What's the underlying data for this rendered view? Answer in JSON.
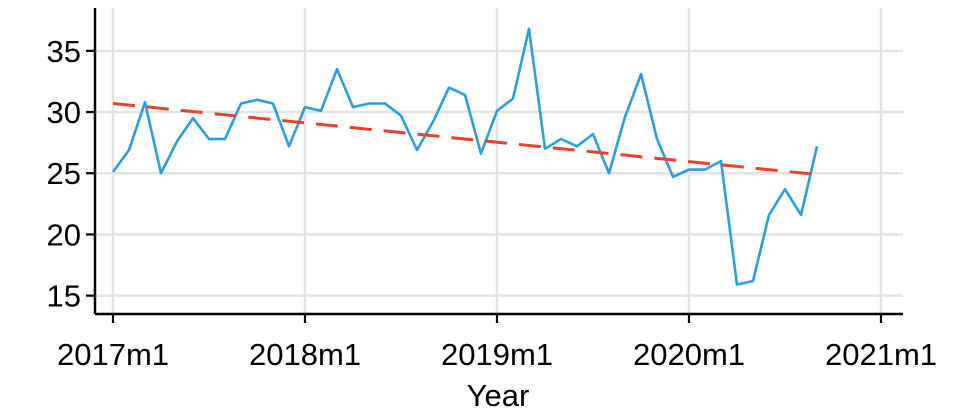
{
  "chart_data": {
    "type": "line",
    "title": "",
    "xlabel": "Year",
    "ylabel": "",
    "x_ticks": [
      "2017m1",
      "2018m1",
      "2019m1",
      "2020m1",
      "2021m1"
    ],
    "y_ticks": [
      15,
      20,
      25,
      30,
      35
    ],
    "xlim": [
      0,
      48
    ],
    "ylim": [
      13.5,
      38.5
    ],
    "grid": true,
    "colors": {
      "data": "#2b9fdc",
      "trend": "#e8412d"
    },
    "series": [
      {
        "style": "solid",
        "x": [
          0,
          1,
          2,
          3,
          4,
          5,
          6,
          7,
          8,
          9,
          10,
          11,
          12,
          13,
          14,
          15,
          16,
          17,
          18,
          19,
          20,
          21,
          22,
          23,
          24,
          25,
          26,
          27,
          28,
          29,
          30,
          31,
          32,
          33,
          34,
          35,
          36,
          37,
          38,
          39,
          40,
          41,
          42,
          43,
          44
        ],
        "values": [
          25.1,
          26.9,
          30.8,
          25.0,
          27.6,
          29.5,
          27.8,
          27.8,
          30.7,
          31.0,
          30.7,
          27.2,
          30.4,
          30.1,
          33.5,
          30.4,
          30.7,
          30.7,
          29.7,
          26.9,
          29.2,
          32.0,
          31.4,
          26.6,
          30.1,
          31.1,
          36.8,
          27.0,
          27.8,
          27.2,
          28.2,
          25.0,
          29.6,
          33.1,
          27.8,
          24.7,
          25.3,
          25.3,
          26.0,
          15.9,
          16.2,
          21.6,
          23.7,
          21.6,
          27.2
        ]
      },
      {
        "style": "dashed",
        "x": [
          0,
          44
        ],
        "values": [
          30.7,
          24.9
        ]
      }
    ]
  }
}
